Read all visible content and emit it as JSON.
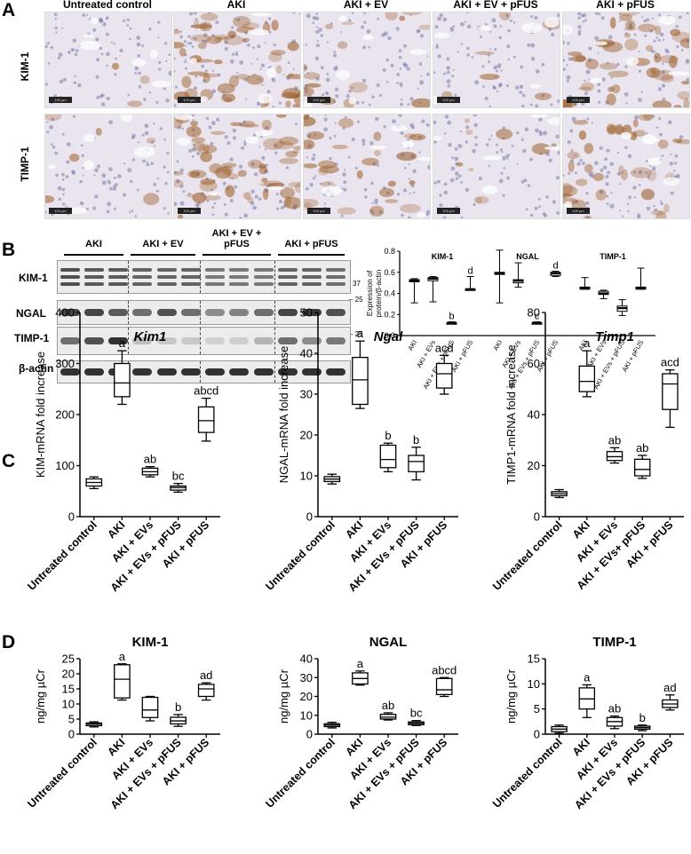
{
  "panels": {
    "A": "A",
    "B": "B",
    "C": "C",
    "D": "D"
  },
  "panel_a": {
    "columns": [
      "Untreated control",
      "AKI",
      "AKI + EV",
      "AKI + EV + pFUS",
      "AKI + pFUS"
    ],
    "rows": [
      "KIM-1",
      "TIMP-1"
    ],
    "scale_bar": "100 µm",
    "stain_levels": [
      [
        0.05,
        0.85,
        0.25,
        0.1,
        0.7
      ],
      [
        0.1,
        0.9,
        0.45,
        0.15,
        0.6
      ]
    ]
  },
  "panel_b": {
    "groups": [
      "AKI",
      "AKI + EV",
      "AKI + EV +\npFUS",
      "AKI + pFUS"
    ],
    "group_lines": [
      [
        "AKI"
      ],
      [
        "AKI + EV"
      ],
      [
        "AKI + EV +",
        "pFUS"
      ],
      [
        "AKI + pFUS"
      ]
    ],
    "blots": [
      "KIM-1",
      "NGAL",
      "TIMP-1",
      "β-actin"
    ],
    "markers": {
      "kim1": "37",
      "ngal": "25",
      "timp1": "25",
      "actin": "37"
    },
    "ylabel_lines": [
      "Expression of",
      "protein/β-actin"
    ]
  },
  "chart_data": [
    {
      "id": "B-quant",
      "type": "box",
      "ylabel": "Expression of protein/β-actin",
      "ylim": [
        0,
        0.8
      ],
      "yticks": [
        0.0,
        0.2,
        0.4,
        0.6,
        0.8
      ],
      "ytick_labels": [
        "0.0",
        "0.2",
        "0.4",
        "0.6",
        "0.8"
      ],
      "categories": [
        "AKI",
        "AKI + EVs",
        "AKI + EVs + pFUS",
        "AKI + pFUS"
      ],
      "groups": [
        {
          "name": "KIM-1",
          "boxes": [
            {
              "min": 0.31,
              "q1": 0.51,
              "median": 0.52,
              "q3": 0.53,
              "max": 0.54,
              "label": ""
            },
            {
              "min": 0.32,
              "q1": 0.52,
              "median": 0.54,
              "q3": 0.55,
              "max": 0.56,
              "label": ""
            },
            {
              "min": 0.11,
              "q1": 0.11,
              "median": 0.12,
              "q3": 0.12,
              "max": 0.13,
              "label": "b"
            },
            {
              "min": 0.43,
              "q1": 0.43,
              "median": 0.44,
              "q3": 0.44,
              "max": 0.56,
              "label": "d"
            }
          ]
        },
        {
          "name": "NGAL",
          "boxes": [
            {
              "min": 0.31,
              "q1": 0.58,
              "median": 0.59,
              "q3": 0.6,
              "max": 0.81,
              "label": ""
            },
            {
              "min": 0.46,
              "q1": 0.5,
              "median": 0.52,
              "q3": 0.53,
              "max": 0.69,
              "label": ""
            },
            {
              "min": 0.11,
              "q1": 0.12,
              "median": 0.12,
              "q3": 0.12,
              "max": 0.13,
              "label": "c"
            },
            {
              "min": 0.56,
              "q1": 0.57,
              "median": 0.59,
              "q3": 0.6,
              "max": 0.61,
              "label": "d"
            }
          ]
        },
        {
          "name": "TIMP-1",
          "boxes": [
            {
              "min": 0.44,
              "q1": 0.44,
              "median": 0.45,
              "q3": 0.46,
              "max": 0.55,
              "label": ""
            },
            {
              "min": 0.35,
              "q1": 0.39,
              "median": 0.4,
              "q3": 0.42,
              "max": 0.43,
              "label": ""
            },
            {
              "min": 0.19,
              "q1": 0.23,
              "median": 0.26,
              "q3": 0.28,
              "max": 0.34,
              "label": ""
            },
            {
              "min": 0.44,
              "q1": 0.44,
              "median": 0.45,
              "q3": 0.46,
              "max": 0.64,
              "label": ""
            }
          ]
        }
      ]
    },
    {
      "id": "C-Kim1",
      "type": "box",
      "title": "Kim1",
      "ylabel": "KIM-mRNA fold increase",
      "ylim": [
        0,
        400
      ],
      "yticks": [
        0,
        100,
        200,
        300,
        400
      ],
      "categories": [
        "Untreated control",
        "AKI",
        "AKI + EVs",
        "AKI + EVs + pFUS",
        "AKI + pFUS"
      ],
      "boxes": [
        {
          "min": 55,
          "q1": 60,
          "median": 67,
          "q3": 74,
          "max": 78,
          "label": ""
        },
        {
          "min": 220,
          "q1": 235,
          "median": 262,
          "q3": 300,
          "max": 325,
          "label": "a"
        },
        {
          "min": 78,
          "q1": 82,
          "median": 88,
          "q3": 95,
          "max": 98,
          "label": "ab"
        },
        {
          "min": 48,
          "q1": 52,
          "median": 57,
          "q3": 60,
          "max": 65,
          "label": "bc"
        },
        {
          "min": 148,
          "q1": 165,
          "median": 188,
          "q3": 215,
          "max": 232,
          "label": "abcd"
        }
      ]
    },
    {
      "id": "C-Ngal",
      "type": "box",
      "title": "Ngal",
      "ylabel": "NGAL-mRNA fold increase",
      "ylim": [
        0,
        50
      ],
      "yticks": [
        0,
        10,
        20,
        30,
        40,
        50
      ],
      "categories": [
        "Untreated control",
        "AKI",
        "AKI + EVs",
        "AKI + EVs + pFUS",
        "AKI + pFUS"
      ],
      "boxes": [
        {
          "min": 8,
          "q1": 8.6,
          "median": 9.2,
          "q3": 9.8,
          "max": 10.4,
          "label": ""
        },
        {
          "min": 26.5,
          "q1": 27.5,
          "median": 33.5,
          "q3": 39,
          "max": 43,
          "label": "a"
        },
        {
          "min": 11,
          "q1": 12,
          "median": 14,
          "q3": 17.5,
          "max": 18,
          "label": "b"
        },
        {
          "min": 9,
          "q1": 11,
          "median": 13.5,
          "q3": 15,
          "max": 17,
          "label": "b"
        },
        {
          "min": 30,
          "q1": 31.5,
          "median": 35,
          "q3": 37.5,
          "max": 39.5,
          "label": "acd"
        }
      ]
    },
    {
      "id": "C-Timp1",
      "type": "box",
      "title": "Timp1",
      "ylabel": "TIMP1-mRNA fold increase",
      "ylim": [
        0,
        80
      ],
      "yticks": [
        0,
        20,
        40,
        60,
        80
      ],
      "categories": [
        "Untreated control",
        "AKI",
        "AKI + EVs",
        "AKI + EVs+ pFUS",
        "AKI + pFUS"
      ],
      "boxes": [
        {
          "min": 7.5,
          "q1": 8.2,
          "median": 9,
          "q3": 9.8,
          "max": 10.6,
          "label": ""
        },
        {
          "min": 47,
          "q1": 49,
          "median": 53,
          "q3": 59,
          "max": 65,
          "label": "a"
        },
        {
          "min": 21,
          "q1": 22,
          "median": 23.5,
          "q3": 25.5,
          "max": 27,
          "label": "ab"
        },
        {
          "min": 15,
          "q1": 16,
          "median": 18.5,
          "q3": 22.5,
          "max": 24,
          "label": "ab"
        },
        {
          "min": 35,
          "q1": 42,
          "median": 52,
          "q3": 56,
          "max": 57.5,
          "label": "acd"
        }
      ]
    },
    {
      "id": "D-KIM1",
      "type": "box",
      "title": "KIM-1",
      "ylabel": "ng/mg µCr",
      "ylim": [
        0,
        25
      ],
      "yticks": [
        0,
        5,
        10,
        15,
        20,
        25
      ],
      "categories": [
        "Untreated control",
        "AKI",
        "AKI + EVs",
        "AKI + EVs + pFUS",
        "AKI + pFUS"
      ],
      "boxes": [
        {
          "min": 2.4,
          "q1": 2.8,
          "median": 3.3,
          "q3": 3.7,
          "max": 4.1,
          "label": ""
        },
        {
          "min": 11.3,
          "q1": 12,
          "median": 18.2,
          "q3": 23,
          "max": 23.3,
          "label": "a"
        },
        {
          "min": 4.4,
          "q1": 5.5,
          "median": 8,
          "q3": 12.2,
          "max": 12.5,
          "label": ""
        },
        {
          "min": 2.6,
          "q1": 3.4,
          "median": 4.4,
          "q3": 5.6,
          "max": 6.5,
          "label": "b"
        },
        {
          "min": 11.3,
          "q1": 12.5,
          "median": 15,
          "q3": 16.5,
          "max": 17,
          "label": "ad"
        }
      ]
    },
    {
      "id": "D-NGAL",
      "type": "box",
      "title": "NGAL",
      "ylabel": "ng/mg µCr",
      "ylim": [
        0,
        40
      ],
      "yticks": [
        0,
        10,
        20,
        30,
        40
      ],
      "categories": [
        "Untreated control",
        "AKI",
        "AKI + EVs",
        "AKI + EVs + pFUS",
        "AKI + pFUS"
      ],
      "boxes": [
        {
          "min": 3.3,
          "q1": 4,
          "median": 4.8,
          "q3": 5.5,
          "max": 6.3,
          "label": ""
        },
        {
          "min": 26,
          "q1": 26.6,
          "median": 29.5,
          "q3": 32.5,
          "max": 33.5,
          "label": "a"
        },
        {
          "min": 7.5,
          "q1": 8,
          "median": 9,
          "q3": 10.5,
          "max": 11.3,
          "label": "ab"
        },
        {
          "min": 4.6,
          "q1": 5,
          "median": 5.8,
          "q3": 6.5,
          "max": 7.2,
          "label": "bc"
        },
        {
          "min": 20,
          "q1": 21,
          "median": 23.5,
          "q3": 29.5,
          "max": 30,
          "label": "abcd"
        }
      ]
    },
    {
      "id": "D-TIMP1",
      "type": "box",
      "title": "TIMP-1",
      "ylabel": "ng/mg µCr",
      "ylim": [
        0,
        15
      ],
      "yticks": [
        0,
        5,
        10,
        15
      ],
      "categories": [
        "Untreated control",
        "AKI",
        "AKI + EVs",
        "AKI + EVs + pFUS",
        "AKI + pFUS"
      ],
      "boxes": [
        {
          "min": 0.2,
          "q1": 0.5,
          "median": 1,
          "q3": 1.5,
          "max": 1.8,
          "label": ""
        },
        {
          "min": 3.3,
          "q1": 5,
          "median": 7,
          "q3": 9.2,
          "max": 9.8,
          "label": "a"
        },
        {
          "min": 1.1,
          "q1": 1.6,
          "median": 2.5,
          "q3": 3.3,
          "max": 3.6,
          "label": "ab"
        },
        {
          "min": 0.7,
          "q1": 1,
          "median": 1.3,
          "q3": 1.6,
          "max": 1.8,
          "label": "b"
        },
        {
          "min": 4.8,
          "q1": 5.3,
          "median": 6,
          "q3": 6.8,
          "max": 7.8,
          "label": "ad"
        }
      ]
    }
  ]
}
